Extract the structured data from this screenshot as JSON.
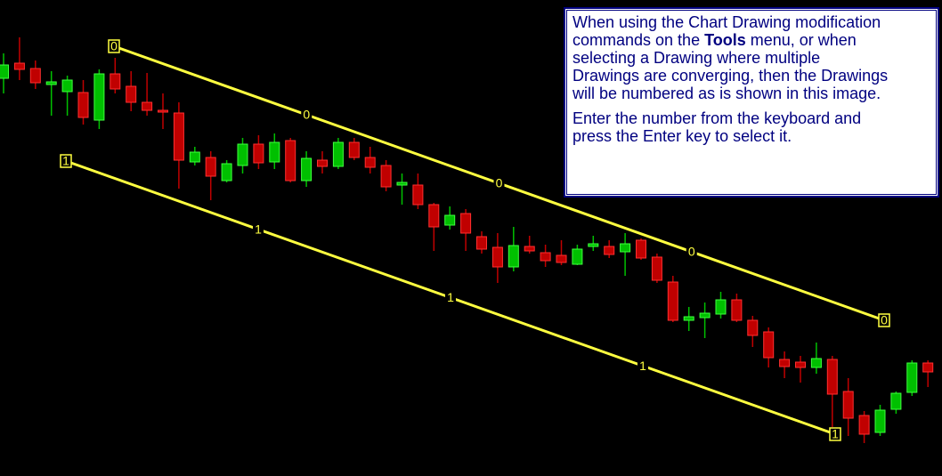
{
  "chart_data": {
    "type": "candlestick",
    "ylim": [
      0,
      535
    ],
    "up_color": "#00c000",
    "down_color": "#c00000",
    "open": [
      447,
      464,
      458,
      440,
      432,
      431,
      400,
      452,
      438,
      420,
      411,
      408,
      353,
      358,
      332,
      349,
      373,
      353,
      377,
      332,
      355,
      348,
      375,
      358,
      349,
      327,
      327,
      305,
      282,
      295,
      269,
      257,
      235,
      258,
      251,
      248,
      238,
      258,
      258,
      252,
      265,
      246,
      218,
      175,
      178,
      182,
      198,
      175,
      162,
      131,
      128,
      122,
      131,
      95,
      68,
      49,
      75,
      94,
      127
    ],
    "high": [
      475,
      493,
      467,
      455,
      450,
      445,
      457,
      470,
      455,
      453,
      430,
      420,
      370,
      365,
      355,
      380,
      383,
      385,
      380,
      365,
      365,
      380,
      380,
      370,
      355,
      340,
      340,
      307,
      303,
      300,
      275,
      273,
      280,
      270,
      260,
      265,
      260,
      270,
      265,
      273,
      267,
      250,
      225,
      190,
      195,
      207,
      205,
      180,
      167,
      140,
      135,
      150,
      135,
      110,
      73,
      80,
      95,
      130,
      130
    ],
    "low": [
      430,
      445,
      435,
      405,
      405,
      395,
      390,
      430,
      410,
      405,
      390,
      323,
      349,
      310,
      330,
      340,
      345,
      345,
      330,
      325,
      340,
      345,
      355,
      340,
      320,
      305,
      300,
      253,
      277,
      253,
      250,
      217,
      230,
      250,
      235,
      237,
      237,
      253,
      245,
      225,
      243,
      217,
      173,
      163,
      155,
      177,
      173,
      145,
      122,
      110,
      105,
      115,
      55,
      45,
      37,
      45,
      70,
      90,
      100
    ],
    "close": [
      462,
      457,
      442,
      443,
      445,
      403,
      452,
      435,
      420,
      411,
      409,
      355,
      364,
      337,
      351,
      373,
      352,
      375,
      332,
      357,
      348,
      375,
      358,
      347,
      325,
      330,
      305,
      280,
      293,
      273,
      255,
      235,
      259,
      253,
      242,
      240,
      255,
      261,
      249,
      261,
      245,
      220,
      175,
      179,
      183,
      198,
      175,
      158,
      133,
      123,
      122,
      132,
      92,
      65,
      47,
      74,
      93,
      127,
      117
    ]
  },
  "drawings": [
    {
      "label": "0"
    },
    {
      "label": "1"
    }
  ],
  "info_box": {
    "paragraphs": [
      {
        "lines": [
          [
            "When using the Chart Drawing modification"
          ],
          [
            "commands on the ",
            "Tools",
            " menu, or when"
          ],
          [
            "selecting a Drawing where multiple"
          ],
          [
            "Drawings are converging, then the Drawings"
          ],
          [
            "will be numbered as is shown in this image."
          ]
        ]
      },
      {
        "lines": [
          [
            "Enter the number from the keyboard and"
          ],
          [
            "press the Enter key to select it."
          ]
        ]
      }
    ]
  }
}
